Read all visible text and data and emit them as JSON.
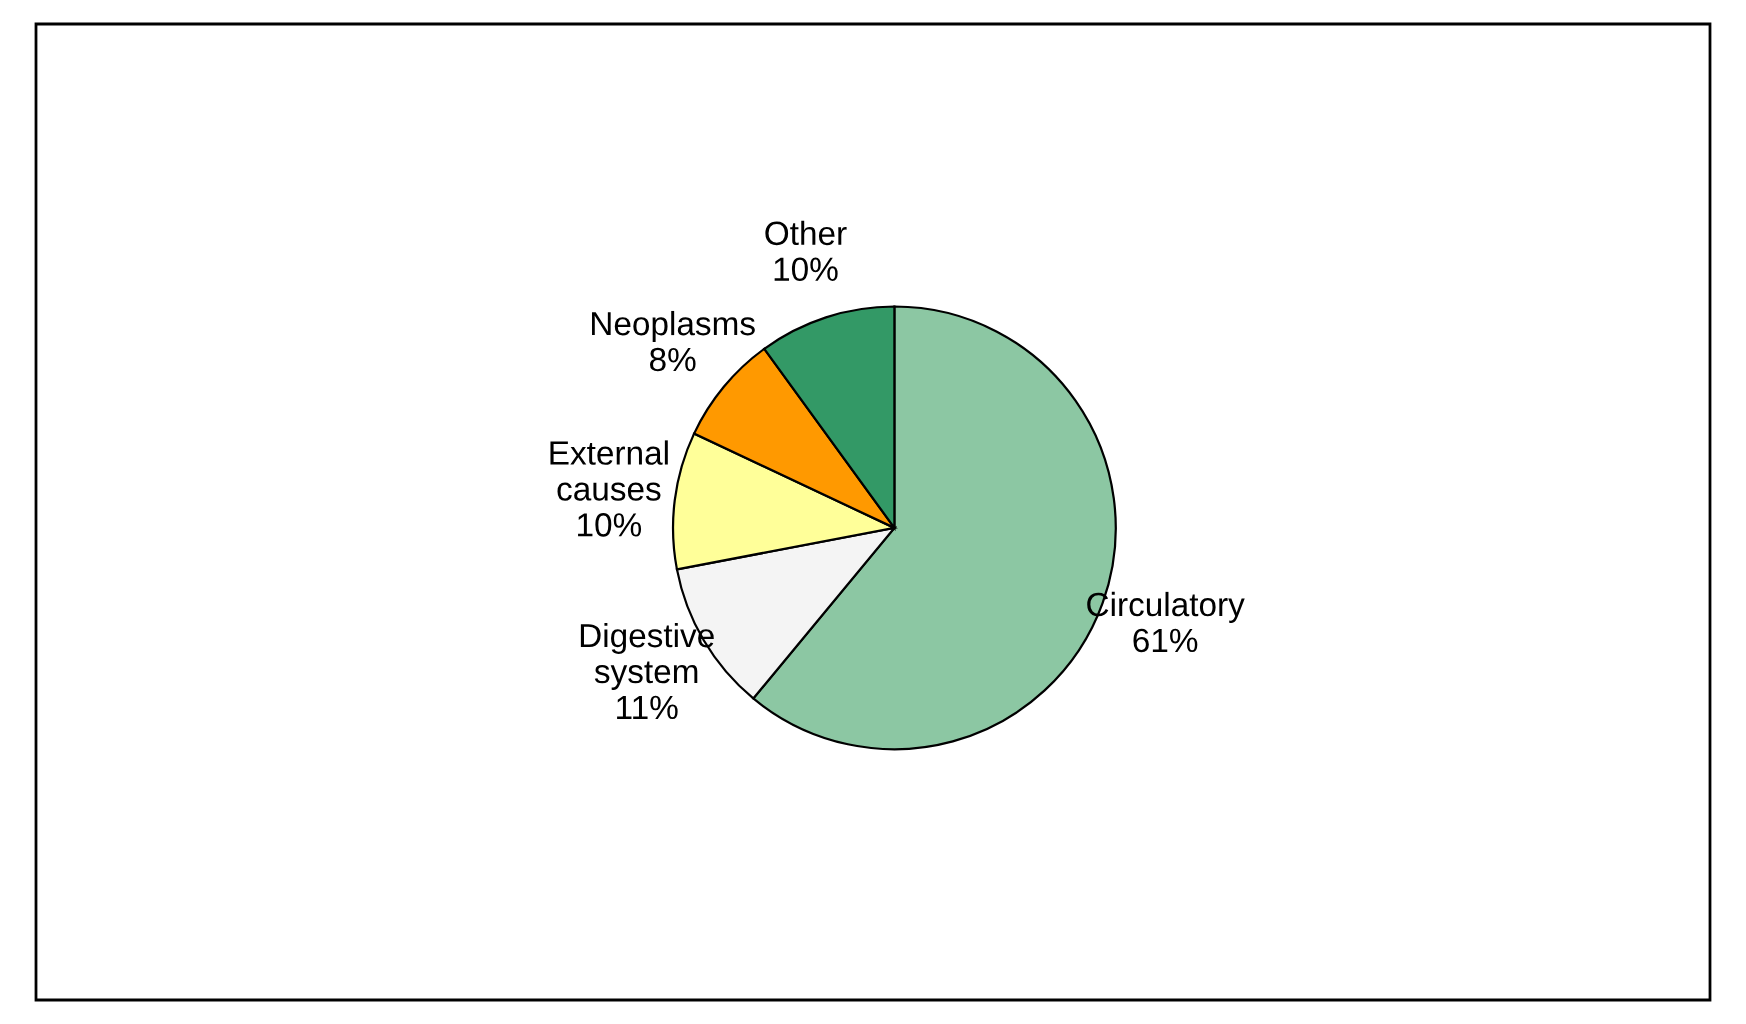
{
  "chart_data": {
    "type": "pie",
    "categories": [
      "Circulatory",
      "Digestive system",
      "External causes",
      "Neoplasms",
      "Other"
    ],
    "values": [
      61,
      11,
      10,
      8,
      10
    ],
    "value_labels": [
      "61%",
      "11%",
      "10%",
      "8%",
      "10%"
    ],
    "colors": [
      "#8cc7a3",
      "#f4f4f4",
      "#ffff99",
      "#ff9900",
      "#339966"
    ],
    "legend": false
  }
}
